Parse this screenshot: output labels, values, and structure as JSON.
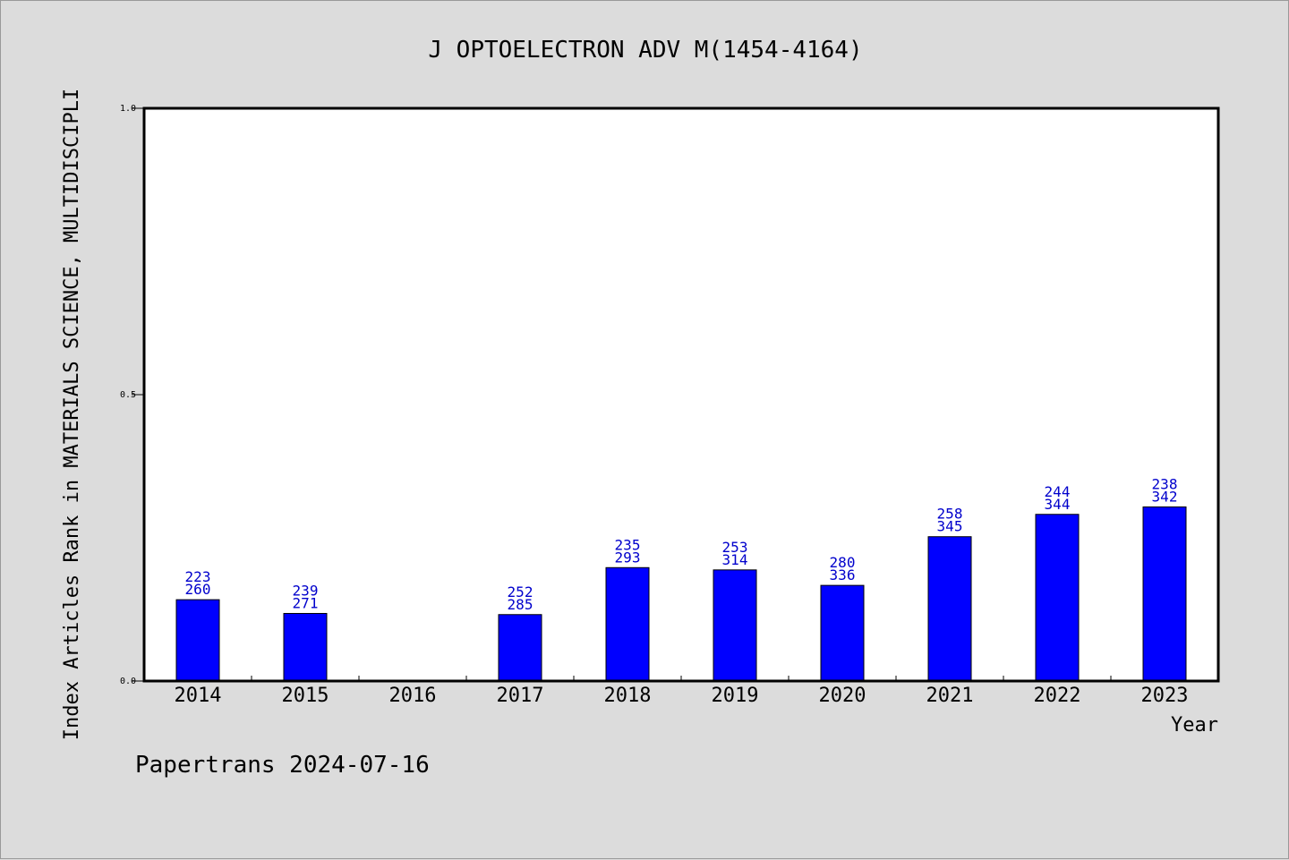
{
  "chart_data": {
    "type": "bar",
    "title": "J OPTOELECTRON ADV M(1454-4164)",
    "xlabel": "Year",
    "ylabel": "Index Articles Rank in MATERIALS SCIENCE, MULTIDISCIPLI",
    "ylim": [
      0,
      1
    ],
    "yticks": [
      "0.0",
      "0.5",
      "1.0"
    ],
    "grid": false,
    "bar_color": "#0000ff",
    "label_color": "#0000cc",
    "categories": [
      "2014",
      "2015",
      "2016",
      "2017",
      "2018",
      "2019",
      "2020",
      "2021",
      "2022",
      "2023"
    ],
    "values": [
      0.142,
      0.118,
      null,
      0.116,
      0.198,
      0.194,
      0.167,
      0.252,
      0.291,
      0.304
    ],
    "rank_labels": [
      "223",
      "239",
      "",
      "252",
      "235",
      "253",
      "280",
      "258",
      "244",
      "238"
    ],
    "total_labels": [
      "260",
      "271",
      "",
      "285",
      "293",
      "314",
      "336",
      "345",
      "344",
      "342"
    ]
  },
  "footer": "Papertrans 2024-07-16"
}
